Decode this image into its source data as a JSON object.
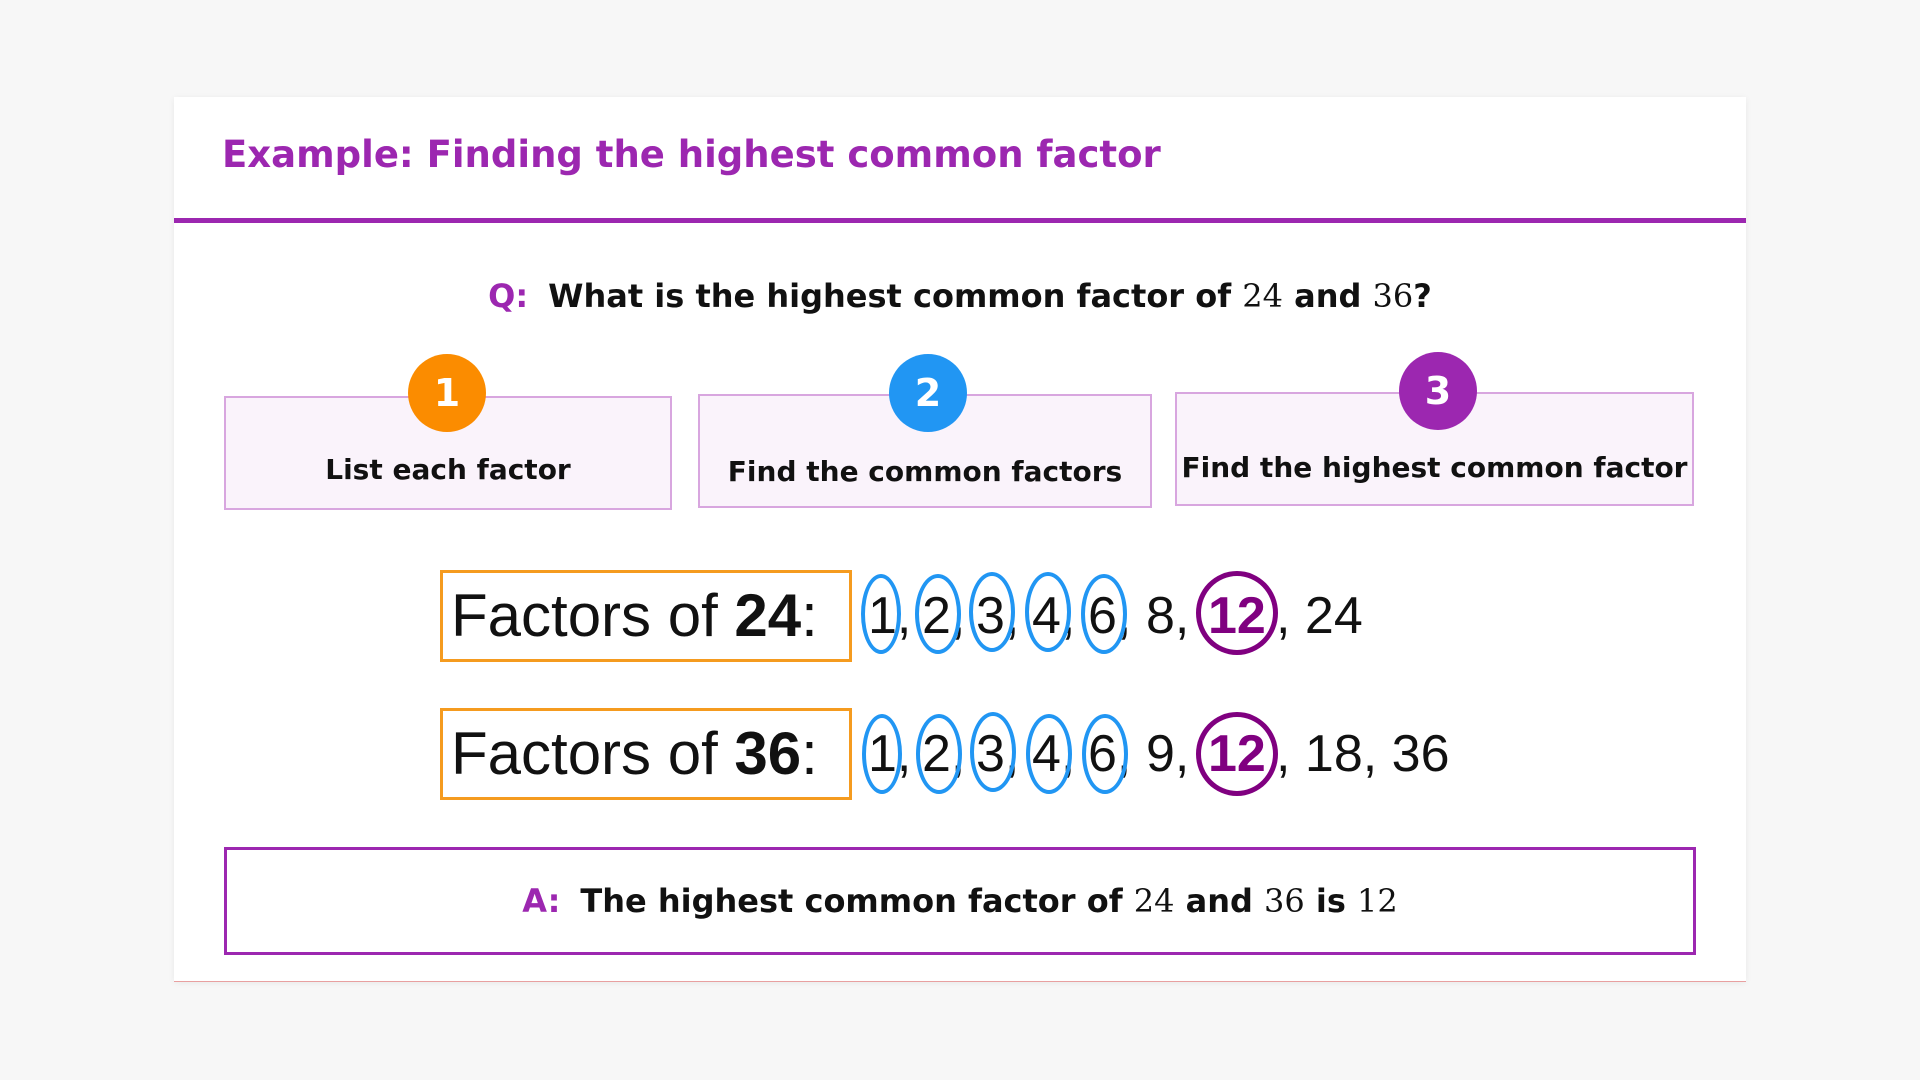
{
  "title": "Example: Finding the highest common factor",
  "question": {
    "label": "Q:",
    "text_before": "What is the highest common factor of",
    "a": "24",
    "mid": "and",
    "b": "36",
    "end": "?"
  },
  "steps": [
    {
      "number": "1",
      "label": "List each factor",
      "color": "#fb8c00"
    },
    {
      "number": "2",
      "label": "Find the common factors",
      "color": "#2196f3"
    },
    {
      "number": "3",
      "label": "Find the highest common factor",
      "color": "#9c27b0"
    }
  ],
  "factors": [
    {
      "prefix": "Factors of ",
      "number": "24",
      "suffix": ":",
      "list": [
        "1",
        "2",
        "3",
        "4",
        "6",
        "8",
        "12",
        "24"
      ]
    },
    {
      "prefix": "Factors of ",
      "number": "36",
      "suffix": ":",
      "list": [
        "1",
        "2",
        "3",
        "4",
        "6",
        "9",
        "12",
        "18",
        "36"
      ]
    }
  ],
  "common_factors": [
    "1",
    "2",
    "3",
    "4",
    "6",
    "12"
  ],
  "highest_common_factor": "12",
  "answer": {
    "label": "A:",
    "text_before": "The highest common factor of",
    "a": "24",
    "mid": "and",
    "b": "36",
    "is": "is",
    "result": "12"
  },
  "colors": {
    "accent": "#9c27b0",
    "step_box_border": "#d8a6df",
    "factor_box_border": "#f59b1f",
    "common_ring": "#2196f3",
    "hcf_ring": "#800080"
  }
}
